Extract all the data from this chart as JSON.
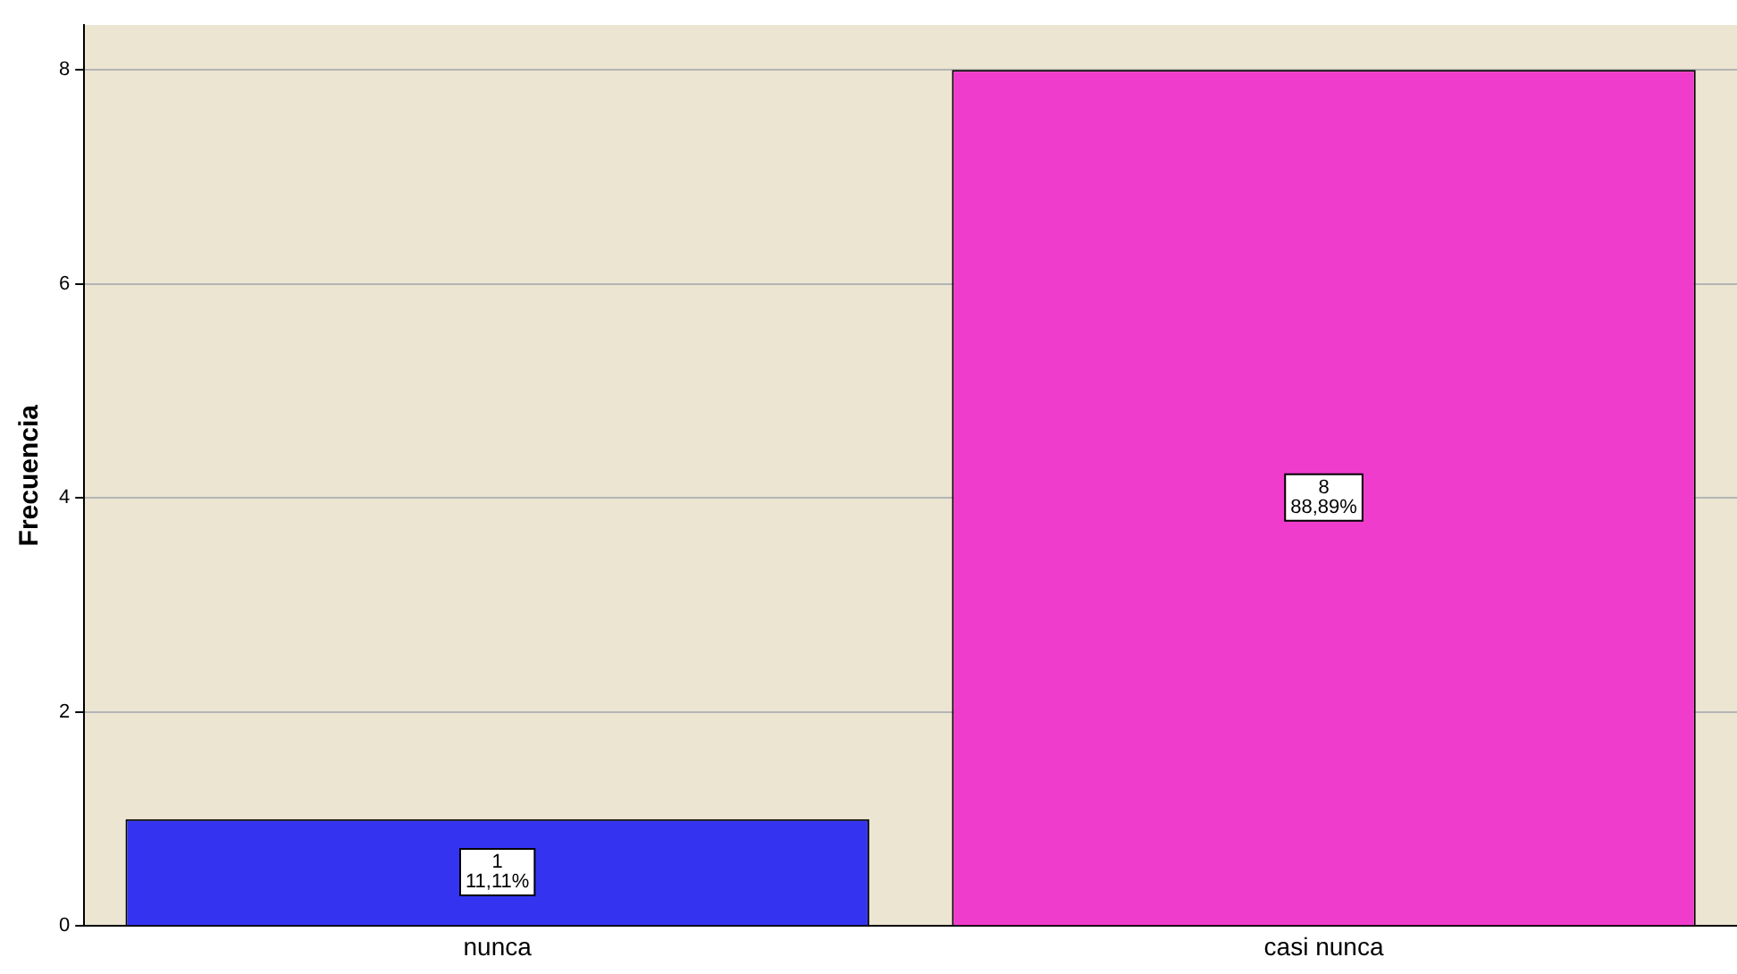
{
  "chart_data": {
    "type": "bar",
    "ylabel": "Frecuencia",
    "categories": [
      "nunca",
      "casi nunca"
    ],
    "values": [
      1,
      8
    ],
    "colors": [
      "#3434f0",
      "#f03ccc"
    ],
    "value_labels": [
      "1\n11,11%",
      "8\n88,89%"
    ],
    "ylim": [
      0,
      8.42
    ],
    "yticks": [
      0,
      2,
      4,
      6,
      8
    ],
    "grid": "y",
    "legend": false
  }
}
